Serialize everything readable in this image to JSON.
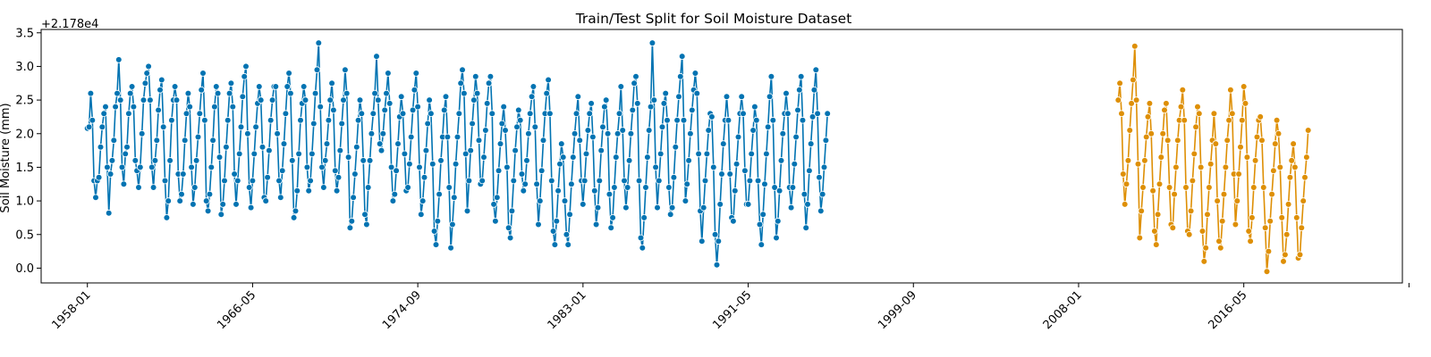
{
  "chart_data": {
    "type": "line",
    "title": "Train/Test Split for Soil Moisture Dataset",
    "xlabel": "",
    "ylabel": "Soil Moisture (mm)",
    "y_offset_label": "+2.178e4",
    "y_offset": 21780,
    "x_start": "1958-01",
    "x_range": [
      "1955-09",
      "2024-05"
    ],
    "ylim": [
      -0.22,
      3.55
    ],
    "y_ticks": [
      0.0,
      0.5,
      1.0,
      1.5,
      2.0,
      2.5,
      3.0,
      3.5
    ],
    "y_tick_labels": [
      "0.0",
      "0.5",
      "1.0",
      "1.5",
      "2.0",
      "2.5",
      "3.0",
      "3.5"
    ],
    "x_ticks": [
      "1958-01",
      "1966-05",
      "1974-09",
      "1983-01",
      "1991-05",
      "1999-09",
      "2008-01",
      "2016-05",
      "2024-09"
    ],
    "x_tick_labels": [
      "1958-01",
      "1966-05",
      "1974-09",
      "1983-01",
      "1991-05",
      "1999-09",
      "2008-01",
      "2016-05",
      ""
    ],
    "grid": false,
    "legend": "none",
    "series": [
      {
        "name": "",
        "color": "#0173b2",
        "x_from": "1958-01",
        "x_to": "2009-12",
        "values": [
          2.08,
          2.1,
          2.6,
          2.2,
          1.3,
          1.05,
          1.3,
          1.35,
          1.8,
          2.1,
          2.3,
          2.4,
          1.5,
          0.82,
          1.4,
          1.6,
          1.9,
          2.4,
          2.6,
          3.1,
          2.5,
          1.5,
          1.25,
          1.7,
          1.8,
          2.3,
          2.6,
          2.7,
          2.4,
          1.6,
          1.45,
          1.2,
          1.5,
          2.0,
          2.5,
          2.75,
          2.9,
          3.0,
          2.5,
          1.5,
          1.2,
          1.6,
          1.9,
          2.35,
          2.65,
          2.8,
          2.1,
          1.3,
          0.75,
          1.0,
          1.6,
          2.2,
          2.5,
          2.7,
          2.5,
          1.4,
          1.0,
          1.1,
          1.4,
          1.9,
          2.3,
          2.6,
          2.4,
          1.5,
          0.95,
          1.2,
          1.6,
          1.95,
          2.3,
          2.65,
          2.9,
          2.2,
          1.0,
          0.85,
          1.1,
          1.5,
          1.9,
          2.4,
          2.7,
          2.6,
          1.65,
          0.8,
          0.95,
          1.3,
          1.8,
          2.2,
          2.6,
          2.75,
          2.4,
          1.4,
          0.95,
          1.3,
          1.7,
          2.1,
          2.55,
          2.85,
          3.0,
          2.0,
          1.2,
          0.9,
          1.3,
          1.7,
          2.1,
          2.45,
          2.7,
          2.5,
          1.8,
          1.05,
          1.0,
          1.35,
          1.75,
          2.2,
          2.5,
          2.7,
          2.7,
          2.0,
          1.3,
          1.05,
          1.45,
          1.85,
          2.3,
          2.7,
          2.9,
          2.6,
          1.6,
          0.75,
          0.85,
          1.15,
          1.7,
          2.2,
          2.45,
          2.7,
          2.5,
          1.5,
          1.15,
          1.3,
          1.7,
          2.15,
          2.6,
          2.95,
          3.35,
          2.4,
          1.5,
          1.2,
          1.6,
          1.85,
          2.2,
          2.5,
          2.75,
          2.35,
          1.45,
          1.15,
          1.35,
          1.75,
          2.15,
          2.5,
          2.95,
          2.6,
          1.65,
          0.6,
          0.7,
          1.05,
          1.4,
          1.8,
          2.2,
          2.5,
          2.3,
          1.6,
          0.8,
          0.65,
          1.2,
          1.6,
          2.0,
          2.3,
          2.6,
          3.15,
          2.5,
          1.85,
          1.75,
          2.0,
          2.35,
          2.6,
          2.9,
          2.45,
          1.5,
          1.0,
          1.1,
          1.45,
          1.85,
          2.25,
          2.55,
          2.3,
          1.7,
          1.15,
          1.2,
          1.55,
          1.95,
          2.35,
          2.65,
          2.9,
          2.4,
          1.5,
          0.8,
          1.0,
          1.35,
          1.75,
          2.15,
          2.5,
          2.3,
          1.55,
          0.55,
          0.35,
          0.7,
          1.1,
          1.6,
          1.95,
          2.35,
          2.55,
          1.95,
          1.2,
          0.3,
          0.65,
          1.05,
          1.55,
          1.95,
          2.3,
          2.75,
          2.95,
          2.6,
          1.7,
          0.85,
          1.3,
          1.75,
          2.15,
          2.5,
          2.85,
          2.6,
          1.9,
          1.25,
          1.3,
          1.65,
          2.05,
          2.45,
          2.75,
          2.85,
          2.3,
          0.95,
          0.7,
          1.05,
          1.45,
          1.85,
          2.15,
          2.4,
          2.05,
          1.5,
          0.6,
          0.45,
          0.85,
          1.3,
          1.75,
          2.1,
          2.35,
          2.2,
          1.4,
          1.15,
          1.25,
          1.6,
          2.0,
          2.3,
          2.55,
          2.7,
          2.1,
          1.25,
          0.65,
          1.0,
          1.45,
          1.9,
          2.3,
          2.6,
          2.8,
          2.3,
          1.3,
          0.55,
          0.35,
          0.7,
          1.15,
          1.55,
          1.85,
          1.65,
          1.0,
          0.5,
          0.35,
          0.8,
          1.25,
          1.65,
          2.0,
          2.3,
          2.55,
          1.9,
          1.3,
          0.95,
          1.3,
          1.7,
          2.05,
          2.3,
          2.45,
          1.95,
          1.15,
          0.65,
          0.9,
          1.3,
          1.75,
          2.1,
          2.4,
          2.5,
          2.0,
          1.1,
          0.6,
          0.75,
          1.2,
          1.65,
          2.0,
          2.3,
          2.7,
          2.05,
          1.3,
          0.9,
          1.2,
          1.6,
          2.0,
          2.35,
          2.75,
          2.85,
          2.45,
          1.3,
          0.45,
          0.3,
          0.75,
          1.2,
          1.65,
          2.05,
          2.4,
          3.35,
          2.5,
          1.5,
          0.9,
          1.3,
          1.7,
          2.1,
          2.45,
          2.6,
          2.2,
          1.2,
          0.8,
          0.9,
          1.35,
          1.8,
          2.2,
          2.55,
          2.85,
          3.15,
          2.2,
          1.0,
          1.25,
          1.6,
          2.0,
          2.35,
          2.65,
          2.9,
          2.6,
          1.7,
          0.85,
          0.4,
          0.9,
          1.3,
          1.7,
          2.05,
          2.3,
          2.25,
          1.5,
          0.5,
          0.05,
          0.4,
          0.95,
          1.4,
          1.85,
          2.2,
          2.55,
          2.2,
          1.4,
          0.75,
          0.7,
          1.15,
          1.55,
          1.95,
          2.3,
          2.55,
          2.3,
          1.45,
          0.95,
          0.95,
          1.3,
          1.7,
          2.05,
          2.4,
          2.2,
          1.3,
          0.65,
          0.35,
          0.8,
          1.25,
          1.7,
          2.1,
          2.55,
          2.85,
          2.2,
          1.2,
          0.45,
          0.7,
          1.15,
          1.6,
          2.0,
          2.3,
          2.6,
          2.3,
          1.2,
          0.9,
          1.2,
          1.55,
          1.95,
          2.35,
          2.65,
          2.85,
          2.2,
          1.1,
          0.6,
          0.95,
          1.45,
          1.85,
          2.25,
          2.65,
          2.95,
          2.3,
          1.35,
          0.85,
          1.1,
          1.5,
          1.9,
          2.3
        ]
      },
      {
        "name": "",
        "color": "#de8f05",
        "x_from": "2010-01",
        "x_to": "2021-12",
        "values": [
          2.5,
          2.75,
          2.3,
          1.4,
          0.95,
          1.25,
          1.6,
          2.05,
          2.45,
          2.8,
          3.3,
          2.5,
          1.55,
          0.45,
          0.85,
          1.2,
          1.6,
          1.95,
          2.25,
          2.45,
          2.0,
          1.15,
          0.55,
          0.35,
          0.8,
          1.25,
          1.65,
          2.0,
          2.35,
          2.45,
          1.9,
          1.2,
          0.65,
          0.6,
          1.1,
          1.5,
          1.9,
          2.2,
          2.4,
          2.65,
          2.2,
          1.2,
          0.55,
          0.5,
          0.85,
          1.3,
          1.7,
          2.1,
          2.4,
          2.3,
          1.5,
          0.55,
          0.1,
          0.3,
          0.8,
          1.2,
          1.55,
          1.9,
          2.3,
          1.85,
          1.0,
          0.4,
          0.3,
          0.7,
          1.1,
          1.5,
          1.9,
          2.2,
          2.65,
          2.3,
          1.4,
          0.65,
          1.0,
          1.4,
          1.8,
          2.2,
          2.7,
          2.45,
          1.65,
          0.55,
          0.4,
          0.75,
          1.2,
          1.6,
          1.95,
          2.2,
          2.25,
          1.9,
          1.2,
          0.6,
          -0.05,
          0.25,
          0.7,
          1.1,
          1.45,
          1.85,
          2.2,
          2.0,
          1.5,
          0.75,
          0.1,
          0.2,
          0.5,
          0.95,
          1.35,
          1.6,
          1.85,
          1.5,
          0.75,
          0.15,
          0.2,
          0.6,
          1.0,
          1.35,
          1.65,
          2.05
        ]
      }
    ]
  }
}
